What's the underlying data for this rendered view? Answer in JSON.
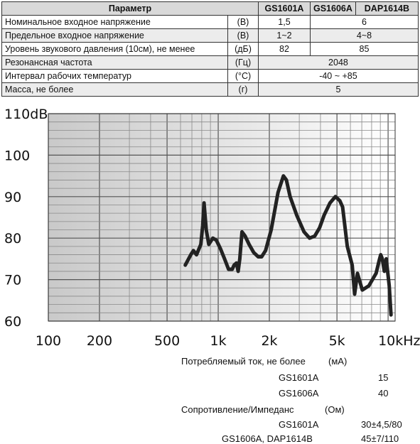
{
  "spec_table": {
    "header": {
      "param": "Параметр",
      "col1": "GS1601A",
      "col2": "GS1606A",
      "col3": "DAP1614B"
    },
    "rows": [
      {
        "name": "Номинальное входное напряжение",
        "unit": "(В)",
        "v1": "1,5",
        "v2": "6"
      },
      {
        "name": "Предельное входное напряжение",
        "unit": "(В)",
        "v1": "1~2",
        "v2": "4~8"
      },
      {
        "name": "Уровень звукового давления (10см), не менее",
        "unit": "(дБ)",
        "v1": "82",
        "v2": "85"
      },
      {
        "name": "Резонансная частота",
        "unit": "(Гц)",
        "v": "2048"
      },
      {
        "name": "Интервал рабочих температур",
        "unit": "(°C)",
        "v": "-40 ~ +85"
      },
      {
        "name": "Масса, не более",
        "unit": "(г)",
        "v": "5"
      }
    ]
  },
  "chart_data": {
    "type": "line",
    "y_tick_labels": [
      "110dB",
      "100",
      "90",
      "80",
      "70",
      "60"
    ],
    "y_ticks": [
      110,
      100,
      90,
      80,
      70,
      60
    ],
    "x_tick_labels": [
      "100",
      "200",
      "500",
      "1k",
      "2k",
      "5k",
      "10kHz"
    ],
    "x_ticks": [
      100,
      200,
      500,
      1000,
      2000,
      5000,
      10000
    ],
    "xlim": [
      100,
      11000
    ],
    "ylim": [
      60,
      110
    ],
    "x_scale": "log",
    "grid": true,
    "legend": "none",
    "line_color": "#222222",
    "series": [
      {
        "x": [
          640,
          690,
          715,
          745,
          790,
          810,
          825,
          850,
          880,
          930,
          975,
          1030,
          1090,
          1150,
          1210,
          1240,
          1280,
          1310,
          1340,
          1380,
          1440,
          1520,
          1620,
          1720,
          1800,
          1900,
          2050,
          2250,
          2420,
          2520,
          2650,
          2900,
          3200,
          3450,
          3700,
          3950,
          4200,
          4550,
          4900,
          5200,
          5400,
          5750,
          6150,
          6350,
          6600,
          7050,
          7700,
          8500,
          8850,
          9050,
          9250,
          9500,
          9750,
          10150,
          10400
        ],
        "y": [
          73.5,
          76,
          77,
          76,
          78.5,
          83,
          88.5,
          82,
          78.5,
          80,
          79.5,
          77.5,
          75,
          72.5,
          72.5,
          73.5,
          74,
          72,
          75,
          81.5,
          80.5,
          78.5,
          76.5,
          75.5,
          75.5,
          77,
          82,
          91,
          95,
          94,
          90,
          85.5,
          81.5,
          80,
          80.5,
          82.5,
          85.5,
          88.5,
          90,
          89,
          87.5,
          78,
          73.5,
          66.5,
          71.5,
          67.5,
          68.5,
          71.5,
          74.5,
          76,
          75,
          72,
          75,
          68.5,
          61.5
        ]
      }
    ]
  },
  "bottom": {
    "current_label": "Потребляемый ток, не более",
    "current_unit": "(мА)",
    "gs1601a_label": "GS1601A",
    "gs1601a_current": "15",
    "gs1606a_label": "GS1606A",
    "gs1606a_current": "40",
    "impedance_label": "Сопротивление/Импеданс",
    "impedance_unit": "(Ом)",
    "imp_gs1601a_label": "GS1601A",
    "imp_gs1601a_value": "30±4,5/80",
    "imp_gs1606a_label": "GS1606A, DAP1614B",
    "imp_gs1606a_value": "45±7/110"
  }
}
